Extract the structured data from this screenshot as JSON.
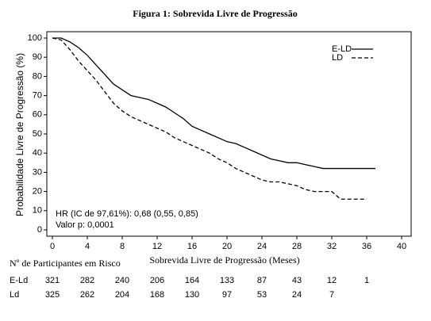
{
  "chart_data": {
    "type": "line",
    "title": "Figura 1: Sobrevida Livre de Progressão",
    "x_label": "Sobrevida Livre de Progressão (Meses)",
    "y_label": "Probabilidade Livre de Progressão (%)",
    "xlim": [
      0,
      40
    ],
    "ylim": [
      0,
      100
    ],
    "xticks": [
      0,
      4,
      8,
      12,
      16,
      20,
      24,
      28,
      32,
      36,
      40
    ],
    "yticks": [
      0,
      10,
      20,
      30,
      40,
      50,
      60,
      70,
      80,
      90,
      100
    ],
    "legend_position": "upper right",
    "annotations": [
      "HR (IC de 97,61%): 0,68 (0,55, 0,85)",
      "Valor p: 0,0001"
    ],
    "series": [
      {
        "name": "E-LD",
        "color": "#000000",
        "dash": false,
        "x": [
          0,
          1,
          2,
          3,
          4,
          5,
          6,
          7,
          8,
          9,
          10,
          11,
          12,
          13,
          14,
          15,
          16,
          17,
          18,
          19,
          20,
          21,
          22,
          23,
          24,
          25,
          26,
          27,
          28,
          29,
          30,
          31,
          32,
          37
        ],
        "values": [
          100,
          100,
          98,
          95,
          91,
          86,
          81,
          76,
          73,
          70,
          69,
          68,
          66,
          64,
          61,
          58,
          54,
          52,
          50,
          48,
          46,
          45,
          43,
          41,
          39,
          37,
          36,
          35,
          35,
          34,
          33,
          32,
          32,
          32
        ]
      },
      {
        "name": "LD",
        "color": "#000000",
        "dash": true,
        "x": [
          0,
          1,
          2,
          3,
          4,
          5,
          6,
          7,
          8,
          9,
          10,
          11,
          12,
          13,
          14,
          15,
          16,
          17,
          18,
          19,
          20,
          21,
          22,
          23,
          24,
          25,
          26,
          27,
          28,
          29,
          30,
          31,
          32,
          33,
          36
        ],
        "values": [
          100,
          99,
          94,
          88,
          83,
          78,
          72,
          66,
          62,
          59,
          57,
          55,
          53,
          51,
          48,
          46,
          44,
          42,
          40,
          37,
          35,
          32,
          30,
          28,
          26,
          25,
          25,
          24,
          23,
          21,
          20,
          20,
          20,
          16,
          16
        ]
      }
    ],
    "risk_table": {
      "title": "Nº de Participantes em Risco",
      "rows": [
        {
          "label": "E-Ld",
          "values": [
            321,
            282,
            240,
            206,
            164,
            133,
            87,
            43,
            12,
            1
          ]
        },
        {
          "label": "Ld",
          "values": [
            325,
            262,
            204,
            168,
            130,
            97,
            53,
            24,
            7
          ]
        }
      ]
    }
  }
}
